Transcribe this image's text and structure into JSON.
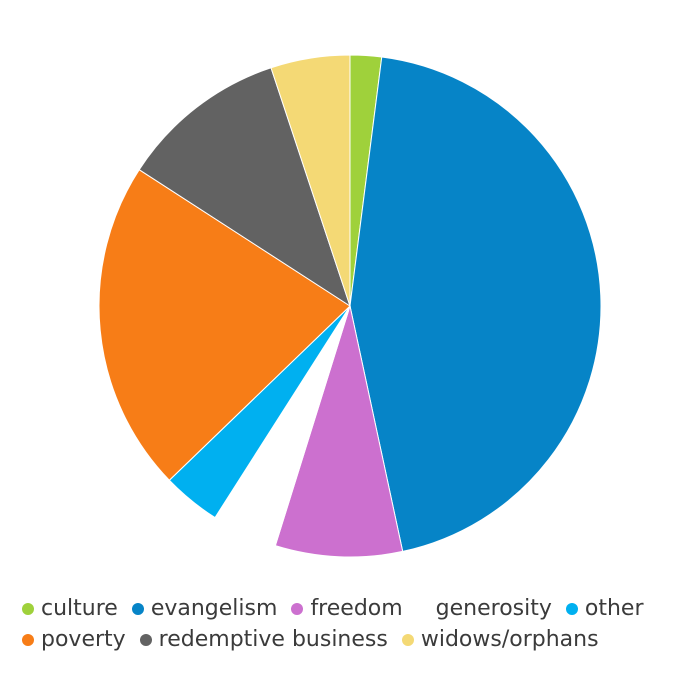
{
  "chart_data": {
    "type": "pie",
    "title": "",
    "start_angle_deg": 0,
    "direction": "clockwise",
    "slices": [
      {
        "label": "culture",
        "value": 2.1,
        "color": "#9fd13b"
      },
      {
        "label": "evangelism",
        "value": 46.4,
        "color": "#0684c7"
      },
      {
        "label": "freedom",
        "value": 8.5,
        "color": "#cc70cf"
      },
      {
        "label": "generosity",
        "value": 4.4,
        "color": "#ffffff"
      },
      {
        "label": "other",
        "value": 3.9,
        "color": "#00b0f0"
      },
      {
        "label": "poverty",
        "value": 22.2,
        "color": "#f77d17"
      },
      {
        "label": "redemptive business",
        "value": 11.2,
        "color": "#626262"
      },
      {
        "label": "widows/orphans",
        "value": 5.3,
        "color": "#f4d975"
      }
    ],
    "legend": {
      "placement": "bottom",
      "rows": [
        [
          "culture",
          "evangelism",
          "freedom",
          "generosity",
          "other"
        ],
        [
          "poverty",
          "redemptive business",
          "widows/orphans"
        ]
      ]
    }
  }
}
